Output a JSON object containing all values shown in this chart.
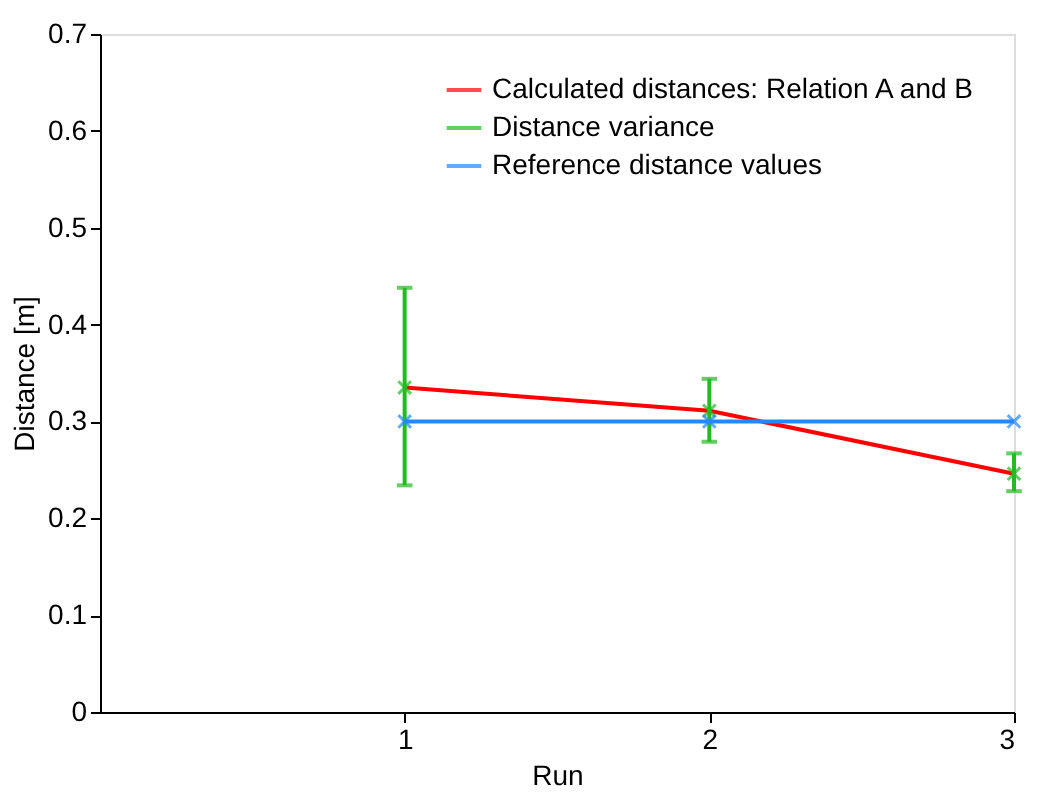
{
  "chart_data": {
    "type": "line",
    "xlabel": "Run",
    "ylabel": "Distance [m]",
    "x": [
      1,
      2,
      3
    ],
    "xlim": [
      0,
      3
    ],
    "xticks": [
      1,
      2,
      3
    ],
    "ylim": [
      0,
      0.7
    ],
    "yticks": [
      0,
      0.1,
      0.2,
      0.3,
      0.4,
      0.5,
      0.6,
      0.7
    ],
    "grid": false,
    "legend": "top right",
    "line_style": "solid",
    "series": [
      {
        "name": "Calculated distances: Relation A and B",
        "type": "line",
        "color": "#ff0000",
        "marker": "none",
        "values": [
          0.335,
          0.311,
          0.246
        ]
      },
      {
        "name": "Distance variance",
        "type": "scatter",
        "color": "#22bb22",
        "marker": "cross",
        "values": [
          0.335,
          0.311,
          0.246
        ],
        "errors": [
          [
            0.234,
            0.438
          ],
          [
            0.279,
            0.344
          ],
          [
            0.228,
            0.267
          ]
        ]
      },
      {
        "name": "Reference distance values",
        "type": "line",
        "color": "#2288ff",
        "marker": "cross",
        "values": [
          0.3,
          0.3,
          0.3
        ]
      }
    ]
  }
}
